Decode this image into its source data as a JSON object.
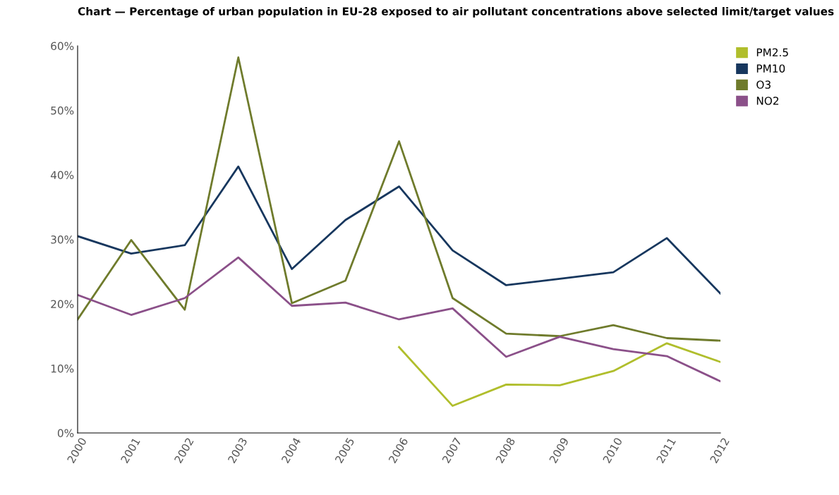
{
  "chart_data": {
    "type": "line",
    "title": "Chart — Percentage of urban population in EU-28 exposed to air pollutant concentrations above selected limit/target values",
    "categories": [
      "2000",
      "2001",
      "2002",
      "2003",
      "2004",
      "2005",
      "2006",
      "2007",
      "2008",
      "2009",
      "2010",
      "2011",
      "2012"
    ],
    "series": [
      {
        "name": "PM2.5",
        "color": "#b0be2c",
        "values": [
          null,
          null,
          null,
          null,
          null,
          null,
          13.3,
          4.2,
          7.5,
          7.4,
          9.6,
          13.9,
          11.0
        ]
      },
      {
        "name": "PM10",
        "color": "#17375e",
        "values": [
          30.5,
          27.8,
          29.1,
          41.3,
          25.4,
          33.0,
          38.2,
          28.3,
          22.9,
          23.9,
          24.9,
          30.2,
          21.6
        ]
      },
      {
        "name": "O3",
        "color": "#6f7b2c",
        "values": [
          17.6,
          29.9,
          19.1,
          58.2,
          20.1,
          23.6,
          45.2,
          20.9,
          15.4,
          15.0,
          16.7,
          14.7,
          14.3
        ]
      },
      {
        "name": "NO2",
        "color": "#8b5089",
        "values": [
          21.4,
          18.3,
          20.9,
          27.2,
          19.7,
          20.2,
          17.6,
          19.3,
          11.8,
          14.9,
          13.0,
          11.9,
          8.0
        ]
      }
    ],
    "ylim": [
      0,
      60
    ],
    "yticks": [
      {
        "value": 0,
        "label": "0%"
      },
      {
        "value": 10,
        "label": "10%"
      },
      {
        "value": 20,
        "label": "20%"
      },
      {
        "value": 30,
        "label": "30%"
      },
      {
        "value": 40,
        "label": "40%"
      },
      {
        "value": 50,
        "label": "50%"
      },
      {
        "value": 60,
        "label": "60%"
      }
    ],
    "grid": false,
    "legend": "top right",
    "marker": "none",
    "line_style": "solid"
  }
}
